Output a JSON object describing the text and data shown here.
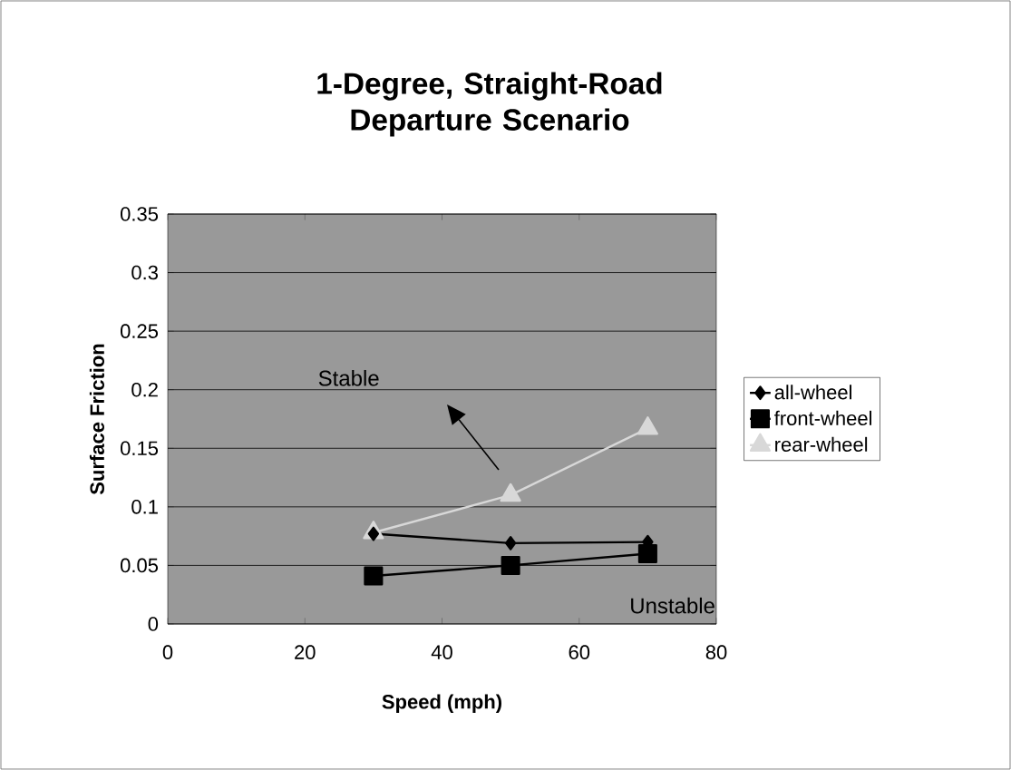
{
  "chart_data": {
    "type": "line",
    "title": "1-Degree, Straight-Road Departure Scenario",
    "xlabel": "Speed (mph)",
    "ylabel": "Surface Friction",
    "x": [
      30,
      50,
      70
    ],
    "series": [
      {
        "name": "all-wheel",
        "color": "#000000",
        "marker": "diamond",
        "values": [
          0.077,
          0.069,
          0.07
        ]
      },
      {
        "name": "front-wheel",
        "color": "#000000",
        "marker": "square",
        "values": [
          0.041,
          0.05,
          0.06
        ]
      },
      {
        "name": "rear-wheel",
        "color": "#d8d8d8",
        "marker": "triangle",
        "values": [
          0.078,
          0.11,
          0.167
        ]
      }
    ],
    "xlim": [
      0,
      80
    ],
    "xticks": [
      0,
      20,
      40,
      60,
      80
    ],
    "ylim": [
      0,
      0.35
    ],
    "yticks": [
      0,
      0.05,
      0.1,
      0.15,
      0.2,
      0.25,
      0.3,
      0.35
    ],
    "grid": "y",
    "legend": "right",
    "line_style": "solid",
    "annotations": [
      "Stable",
      "Unstable"
    ]
  }
}
